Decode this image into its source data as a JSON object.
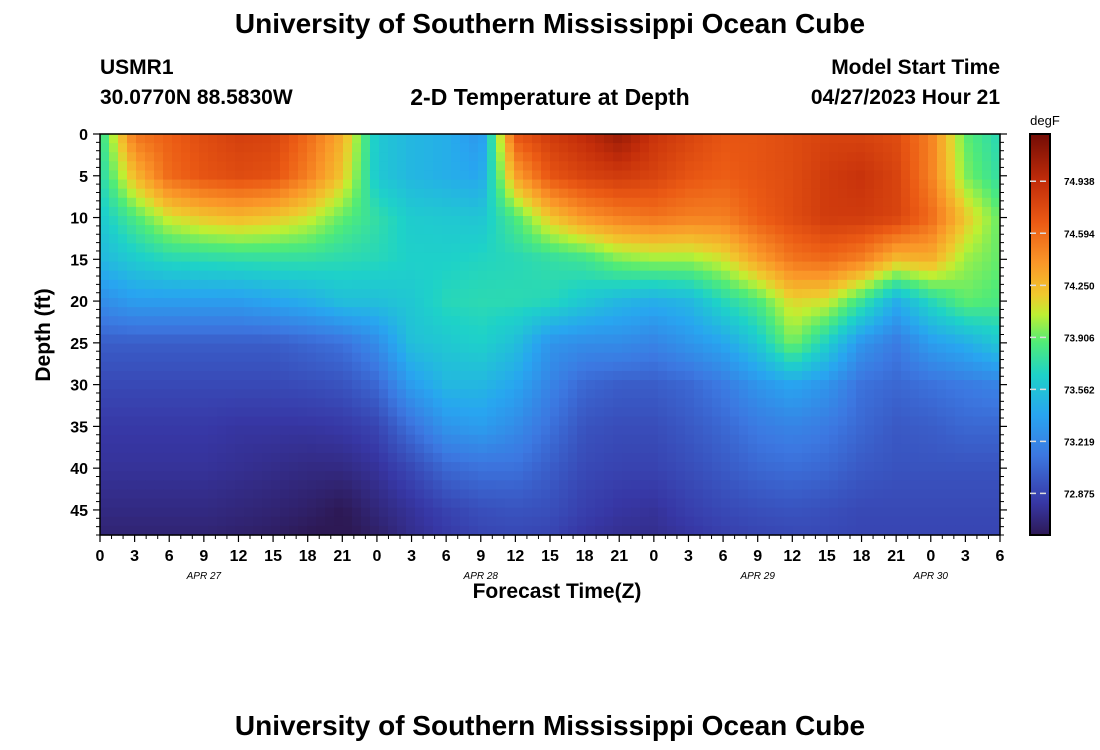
{
  "page": {
    "title": "University of Southern Mississippi Ocean Cube",
    "title_repeat": "University of Southern Mississippi Ocean Cube",
    "station_id": "USMR1",
    "coordinates": "30.0770N  88.5830W",
    "subtitle": "2-D Temperature at Depth",
    "model_label": "Model Start Time",
    "model_time": "04/27/2023 Hour 21"
  },
  "chart_data": {
    "type": "heatmap",
    "title": "2-D Temperature at Depth",
    "xlabel": "Forecast Time(Z)",
    "ylabel": "Depth (ft)",
    "x_ticks": [
      "0",
      "3",
      "6",
      "9",
      "12",
      "15",
      "18",
      "21",
      "0",
      "3",
      "6",
      "9",
      "12",
      "15",
      "18",
      "21",
      "0",
      "3",
      "6",
      "9",
      "12",
      "15",
      "18",
      "21",
      "0",
      "3",
      "6"
    ],
    "date_labels": [
      {
        "label": "APR 27",
        "hour": 9
      },
      {
        "label": "APR 28",
        "hour": 33
      },
      {
        "label": "APR 29",
        "hour": 57
      },
      {
        "label": "APR 30",
        "hour": 72
      }
    ],
    "xlim": [
      0,
      78
    ],
    "y_ticks": [
      0,
      5,
      10,
      15,
      20,
      25,
      30,
      35,
      40,
      45
    ],
    "ylim": [
      0,
      48
    ],
    "colorbar": {
      "units": "degF",
      "ticks": [
        "74.938",
        "74.594",
        "74.250",
        "73.906",
        "73.562",
        "73.219",
        "72.875"
      ],
      "tick_values": [
        74.938,
        74.594,
        74.25,
        73.906,
        73.562,
        73.219,
        72.875
      ],
      "range": [
        72.6,
        75.25
      ]
    },
    "depths": [
      0,
      5,
      10,
      15,
      20,
      25,
      30,
      35,
      40,
      45,
      48
    ],
    "times": [
      0,
      3,
      6,
      9,
      12,
      15,
      18,
      21,
      24,
      27,
      30,
      33,
      36,
      39,
      42,
      45,
      48,
      51,
      54,
      57,
      60,
      63,
      66,
      69,
      72,
      75,
      78
    ],
    "temperature": [
      [
        73.75,
        74.55,
        74.65,
        74.75,
        74.82,
        74.8,
        74.6,
        74.3,
        73.6,
        73.5,
        73.45,
        73.3,
        74.7,
        74.85,
        74.95,
        75.1,
        74.9,
        74.8,
        74.7,
        74.7,
        74.75,
        74.8,
        74.8,
        74.75,
        74.5,
        73.9,
        73.7
      ],
      [
        73.7,
        74.25,
        74.6,
        74.7,
        74.75,
        74.72,
        74.5,
        74.2,
        73.6,
        73.5,
        73.45,
        73.4,
        74.35,
        74.7,
        74.8,
        74.85,
        74.8,
        74.7,
        74.65,
        74.7,
        74.75,
        74.85,
        74.9,
        74.8,
        74.5,
        73.95,
        73.75
      ],
      [
        73.6,
        73.85,
        74.1,
        74.2,
        74.25,
        74.2,
        74.1,
        73.9,
        73.75,
        73.62,
        73.6,
        73.58,
        73.85,
        74.2,
        74.4,
        74.5,
        74.55,
        74.5,
        74.5,
        74.65,
        74.75,
        74.85,
        74.85,
        74.8,
        74.6,
        74.2,
        73.9
      ],
      [
        73.5,
        73.62,
        73.7,
        73.72,
        73.74,
        73.75,
        73.75,
        73.72,
        73.7,
        73.65,
        73.65,
        73.68,
        73.7,
        73.75,
        73.8,
        73.95,
        74.0,
        74.0,
        74.1,
        74.35,
        74.55,
        74.6,
        74.5,
        74.25,
        74.3,
        74.0,
        73.9
      ],
      [
        73.25,
        73.35,
        73.35,
        73.35,
        73.35,
        73.4,
        73.45,
        73.55,
        73.55,
        73.6,
        73.7,
        73.72,
        73.72,
        73.7,
        73.6,
        73.5,
        73.45,
        73.5,
        73.7,
        73.85,
        74.15,
        74.1,
        73.8,
        73.45,
        73.7,
        73.9,
        73.85
      ],
      [
        73.0,
        73.0,
        73.0,
        73.0,
        73.0,
        73.0,
        73.05,
        73.1,
        73.25,
        73.55,
        73.6,
        73.65,
        73.55,
        73.3,
        73.25,
        73.25,
        73.2,
        73.3,
        73.4,
        73.6,
        73.95,
        73.65,
        73.3,
        73.15,
        73.35,
        73.45,
        73.6
      ],
      [
        72.9,
        72.9,
        72.9,
        72.9,
        72.9,
        72.9,
        72.92,
        72.95,
        73.05,
        73.35,
        73.5,
        73.5,
        73.4,
        73.2,
        73.05,
        73.0,
        73.0,
        73.05,
        73.15,
        73.3,
        73.4,
        73.3,
        73.1,
        73.05,
        73.1,
        73.15,
        73.2
      ],
      [
        72.82,
        72.82,
        72.82,
        72.82,
        72.8,
        72.8,
        72.8,
        72.82,
        72.88,
        73.1,
        73.3,
        73.35,
        73.25,
        73.1,
        72.95,
        72.92,
        72.92,
        72.98,
        73.05,
        73.15,
        73.2,
        73.15,
        73.05,
        72.98,
        73.0,
        73.05,
        73.05
      ],
      [
        72.78,
        72.78,
        72.78,
        72.78,
        72.76,
        72.74,
        72.72,
        72.72,
        72.78,
        72.9,
        73.05,
        73.1,
        73.1,
        73.0,
        72.9,
        72.87,
        72.87,
        72.92,
        72.98,
        73.05,
        73.08,
        73.05,
        72.98,
        72.95,
        72.95,
        72.95,
        72.95
      ],
      [
        72.72,
        72.72,
        72.72,
        72.72,
        72.7,
        72.68,
        72.65,
        72.6,
        72.7,
        72.78,
        72.87,
        72.93,
        72.95,
        72.93,
        72.85,
        72.8,
        72.78,
        72.85,
        72.9,
        72.93,
        72.95,
        72.93,
        72.9,
        72.9,
        72.9,
        72.9,
        72.9
      ],
      [
        72.68,
        72.68,
        72.68,
        72.68,
        72.66,
        72.64,
        72.6,
        72.58,
        72.65,
        72.75,
        72.82,
        72.88,
        72.9,
        72.88,
        72.8,
        72.76,
        72.75,
        72.8,
        72.85,
        72.88,
        72.9,
        72.9,
        72.88,
        72.88,
        72.88,
        72.88,
        72.88
      ]
    ]
  }
}
